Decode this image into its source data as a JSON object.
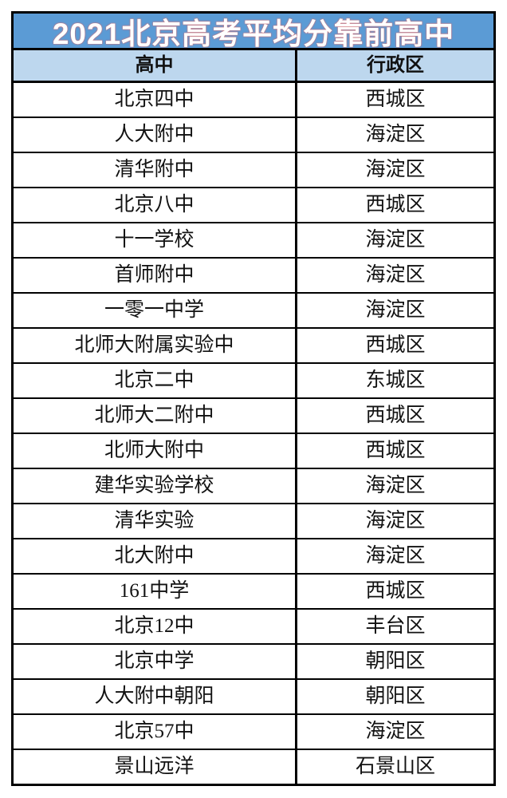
{
  "chart_data": {
    "type": "table",
    "title": "2021北京高考平均分靠前高中",
    "columns": [
      "高中",
      "行政区"
    ],
    "rows": [
      [
        "北京四中",
        "西城区"
      ],
      [
        "人大附中",
        "海淀区"
      ],
      [
        "清华附中",
        "海淀区"
      ],
      [
        "北京八中",
        "西城区"
      ],
      [
        "十一学校",
        "海淀区"
      ],
      [
        "首师附中",
        "海淀区"
      ],
      [
        "一零一中学",
        "海淀区"
      ],
      [
        "北师大附属实验中",
        "西城区"
      ],
      [
        "北京二中",
        "东城区"
      ],
      [
        "北师大二附中",
        "西城区"
      ],
      [
        "北师大附中",
        "西城区"
      ],
      [
        "建华实验学校",
        "海淀区"
      ],
      [
        "清华实验",
        "海淀区"
      ],
      [
        "北大附中",
        "海淀区"
      ],
      [
        "161中学",
        "西城区"
      ],
      [
        "北京12中",
        "丰台区"
      ],
      [
        "北京中学",
        "朝阳区"
      ],
      [
        "人大附中朝阳",
        "朝阳区"
      ],
      [
        "北京57中",
        "海淀区"
      ],
      [
        "景山远洋",
        "石景山区"
      ]
    ]
  },
  "colors": {
    "title_bg": "#5b9bd5",
    "title_text": "#ffffff",
    "title_fringe": "#e06a6a",
    "header_bg": "#bdd7ee",
    "border": "#000000",
    "body_bg": "#ffffff",
    "body_text": "#111111"
  }
}
